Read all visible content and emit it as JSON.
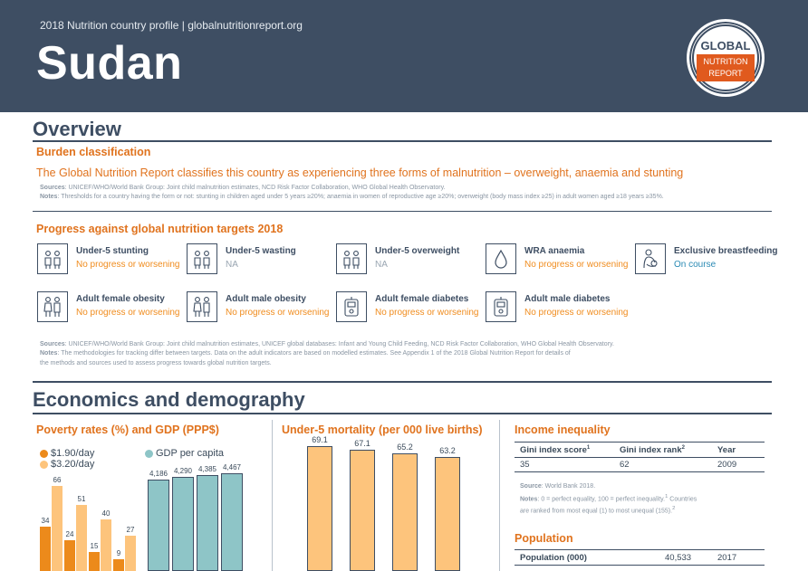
{
  "header": {
    "subtitle": "2018 Nutrition country profile  |  globalnutritionreport.org",
    "country": "Sudan",
    "logo_top": "GLOBAL",
    "logo_line1": "NUTRITION",
    "logo_line2": "REPORT"
  },
  "overview": {
    "heading": "Overview",
    "burden_heading": "Burden classification",
    "burden_text": "The Global Nutrition Report classifies this country as experiencing three forms of malnutrition – overweight, anaemia and stunting",
    "sources_label": "Sources",
    "sources_text": ": UNICEF/WHO/World Bank Group: Joint child malnutrition estimates, NCD Risk Factor Collaboration, WHO Global Health Observatory.",
    "notes_label": "Notes",
    "notes_text": ": Thresholds for a country having the form or not: stunting in children aged under 5 years ≥20%; anaemia in women of reproductive age ≥20%; overweight (body mass index ≥25) in adult women aged ≥18 years ≥35%.",
    "progress_heading": "Progress against global nutrition targets 2018",
    "targets": [
      {
        "name": "Under-5 stunting",
        "status": "No progress or worsening",
        "icon": "children-icon"
      },
      {
        "name": "Under-5 wasting",
        "status": "NA",
        "icon": "children-icon"
      },
      {
        "name": "Under-5 overweight",
        "status": "NA",
        "icon": "children-icon"
      },
      {
        "name": "WRA anaemia",
        "status": "No progress or worsening",
        "icon": "drop-icon"
      },
      {
        "name": "Exclusive breastfeeding",
        "status": "On course",
        "icon": "mother-baby-icon"
      },
      {
        "name": "Adult female obesity",
        "status": "No progress or worsening",
        "icon": "adults-icon"
      },
      {
        "name": "Adult male obesity",
        "status": "No progress or worsening",
        "icon": "adults-icon"
      },
      {
        "name": "Adult female diabetes",
        "status": "No progress or worsening",
        "icon": "glucose-meter-icon"
      },
      {
        "name": "Adult male diabetes",
        "status": "No progress or worsening",
        "icon": "glucose-meter-icon"
      }
    ],
    "targets_sources_label": "Sources",
    "targets_sources_text": ": UNICEF/WHO/World Bank Group: Joint child malnutrition estimates, UNICEF global databases: Infant and Young Child Feeding, NCD Risk Factor Collaboration, WHO Global Health Observatory.",
    "targets_notes_label": "Notes",
    "targets_notes_text": ": The methodologies for tracking differ between targets. Data on the adult indicators are based on modelled estimates. See Appendix 1 of the 2018 Global Nutrition Report for details of",
    "targets_notes_text2": "the methods and sources used to assess progress towards global nutrition targets."
  },
  "economics": {
    "heading": "Economics and demography",
    "poverty_heading": "Poverty rates (%) and GDP (PPP$)",
    "mortality_heading": "Under-5 mortality (per 000 live births)",
    "income_heading": "Income inequality",
    "income_table": {
      "headers": [
        "Gini index score",
        "Gini index rank",
        "Year"
      ],
      "sup": [
        "1",
        "2",
        ""
      ],
      "row": [
        "35",
        "62",
        "2009"
      ]
    },
    "income_source_label": "Source",
    "income_source_text": ": World Bank 2018.",
    "income_notes_label": "Notes",
    "income_notes_text": ": 0 = perfect equality, 100 = perfect inequality.",
    "income_notes_sup1": "1",
    "income_notes_text2": " Countries",
    "income_notes_text3": "are ranked from most equal (1) to most unequal (155).",
    "income_notes_sup2": "2",
    "population_heading": "Population",
    "population_row": [
      "Population (000)",
      "40,533",
      "2017"
    ]
  },
  "colors": {
    "navy": "#3e4e63",
    "orange_dark": "#ec8a1b",
    "orange_light": "#fdc47c",
    "teal": "#8ec5c7",
    "status_orange": "#f08c1e",
    "status_blue": "#2a8ab4"
  },
  "chart_data": [
    {
      "type": "bar",
      "title": "Poverty rates (%) and GDP (PPP$)",
      "series": [
        {
          "name": "$1.90/day",
          "color": "#ec8a1b",
          "values": [
            34,
            24,
            15,
            9
          ]
        },
        {
          "name": "$3.20/day",
          "color": "#fdc47c",
          "values": [
            66,
            51,
            40,
            27
          ]
        }
      ],
      "gdp_series": {
        "name": "GDP per capita",
        "color": "#8ec5c7",
        "values": [
          4186,
          4290,
          4385,
          4467
        ],
        "labels": [
          "4,186",
          "4,290",
          "4,385",
          "4,467"
        ]
      }
    },
    {
      "type": "bar",
      "title": "Under-5 mortality (per 000 live births)",
      "values": [
        69.1,
        67.1,
        65.2,
        63.2
      ],
      "labels": [
        "69.1",
        "67.1",
        "65.2",
        "63.2"
      ],
      "color": "#fdc47c"
    }
  ]
}
